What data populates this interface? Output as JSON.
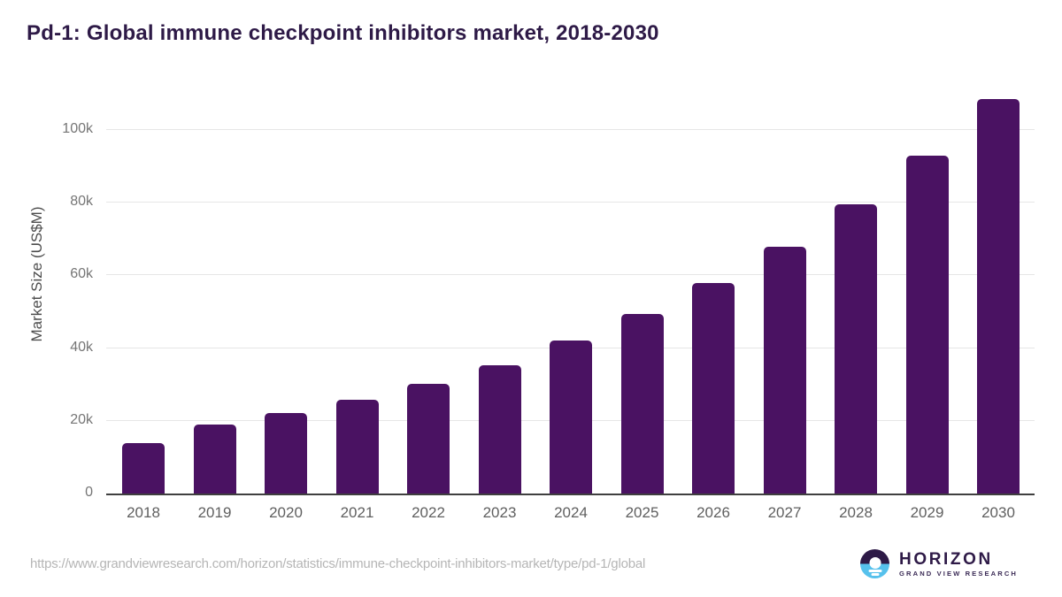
{
  "chart_data": {
    "type": "bar",
    "title": "Pd-1: Global immune checkpoint inhibitors market, 2018-2030",
    "categories": [
      "2018",
      "2019",
      "2020",
      "2021",
      "2022",
      "2023",
      "2024",
      "2025",
      "2026",
      "2027",
      "2028",
      "2029",
      "2030"
    ],
    "values": [
      14000,
      18900,
      22200,
      25900,
      30300,
      35400,
      42000,
      49300,
      58000,
      68000,
      79500,
      93000,
      108500
    ],
    "xlabel": "",
    "ylabel": "Market Size (US$M)",
    "ylim": [
      0,
      110000
    ],
    "yticks": [
      {
        "value": 0,
        "label": "0"
      },
      {
        "value": 20000,
        "label": "20k"
      },
      {
        "value": 40000,
        "label": "40k"
      },
      {
        "value": 60000,
        "label": "60k"
      },
      {
        "value": 80000,
        "label": "80k"
      },
      {
        "value": 100000,
        "label": "100k"
      }
    ],
    "grid": "horizontal-only",
    "legend": "none",
    "bar_color": "#4a1262"
  },
  "footer": {
    "source_url": "https://www.grandviewresearch.com/horizon/statistics/immune-checkpoint-inhibitors-market/type/pd-1/global",
    "logo": {
      "brand": "HORIZON",
      "sub_brand": "GRAND VIEW RESEARCH"
    }
  },
  "colors": {
    "bar": "#4a1262",
    "title_text": "#2e1a47",
    "axis_line": "#3f3f3f",
    "gridline": "#e6e6e6",
    "y_tick_text": "#757575",
    "x_tick_text": "#5f5f5f",
    "y_axis_title_text": "#4d4d4d",
    "url_text": "#b5b5b5",
    "logo_purple": "#2e1a47",
    "logo_blue": "#56c1ec"
  }
}
